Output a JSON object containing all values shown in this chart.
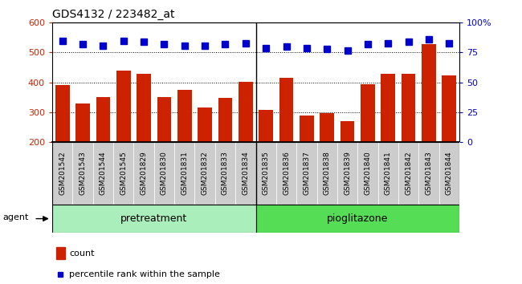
{
  "title": "GDS4132 / 223482_at",
  "samples": [
    "GSM201542",
    "GSM201543",
    "GSM201544",
    "GSM201545",
    "GSM201829",
    "GSM201830",
    "GSM201831",
    "GSM201832",
    "GSM201833",
    "GSM201834",
    "GSM201835",
    "GSM201836",
    "GSM201837",
    "GSM201838",
    "GSM201839",
    "GSM201840",
    "GSM201841",
    "GSM201842",
    "GSM201843",
    "GSM201844"
  ],
  "counts": [
    390,
    328,
    352,
    440,
    428,
    352,
    375,
    315,
    347,
    402,
    307,
    415,
    290,
    296,
    270,
    395,
    430,
    430,
    528,
    422
  ],
  "percentile_ranks": [
    85,
    82,
    81,
    85,
    84,
    82,
    81,
    81,
    82,
    83,
    79,
    80,
    79,
    78,
    77,
    82,
    83,
    84,
    86,
    83
  ],
  "bar_color": "#cc2200",
  "dot_color": "#0000cc",
  "ylim_left": [
    200,
    600
  ],
  "ylim_right": [
    0,
    100
  ],
  "yticks_left": [
    200,
    300,
    400,
    500,
    600
  ],
  "yticks_right": [
    0,
    25,
    50,
    75,
    100
  ],
  "ytick_labels_right": [
    "0",
    "25",
    "50",
    "75",
    "100%"
  ],
  "grid_values": [
    300,
    400,
    500
  ],
  "pretreatment_color": "#aaeebb",
  "pioglitazone_color": "#55dd55",
  "agent_label": "agent",
  "pretreatment_label": "pretreatment",
  "pioglitazone_label": "pioglitazone",
  "legend_count_label": "count",
  "legend_percentile_label": "percentile rank within the sample",
  "n_pretreatment": 10,
  "tick_bg_color": "#cccccc"
}
